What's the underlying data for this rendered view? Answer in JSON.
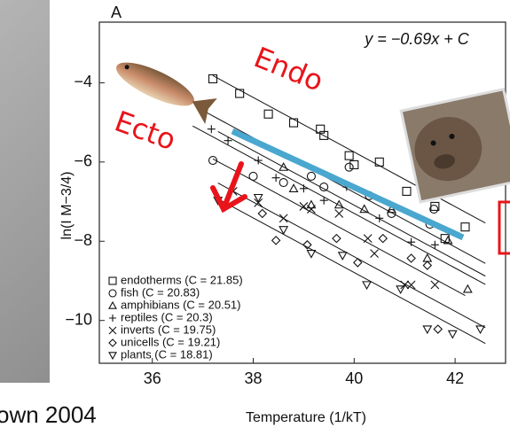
{
  "chart_data": {
    "type": "scatter",
    "panel_label": "A",
    "equation": "y = −0.69x + C",
    "annotations": [
      "Endo",
      "Ecto"
    ],
    "credit": "own 2004",
    "x_label": "Temperature (1/kT)",
    "y_label": "ln(I M−3/4)",
    "xlim": [
      34.95,
      43.0
    ],
    "ylim": [
      -11.08,
      -2.47
    ],
    "xticks": [
      36,
      38,
      40,
      42
    ],
    "yticks": [
      {
        "value": -4,
        "label": "−4"
      },
      {
        "value": -6,
        "label": "−6"
      },
      {
        "value": -8,
        "label": "−8"
      },
      {
        "value": -10,
        "label": "−10"
      }
    ],
    "legend": "lower left",
    "series": [
      {
        "name": "endotherms (C = 21.85)",
        "color": "#111111",
        "marker": "square",
        "x": [
          37.2,
          37.73,
          38.3,
          38.8,
          39.33,
          39.4,
          39.9,
          40.0,
          40.5,
          41.04,
          41.6,
          42.2,
          41.8
        ],
        "values": [
          -3.9,
          -4.27,
          -4.79,
          -5.01,
          -5.17,
          -5.33,
          -5.84,
          -6.07,
          -6.0,
          -6.74,
          -7.12,
          -7.64,
          -7.93
        ]
      },
      {
        "name": "fish (C = 20.83)",
        "color": "#111111",
        "marker": "circle",
        "x": [
          37.2,
          38.0,
          38.6,
          39.15,
          39.4,
          39.9,
          40.3,
          40.74,
          41.58,
          41.5
        ],
        "values": [
          -5.96,
          -6.36,
          -6.52,
          -6.36,
          -6.63,
          -6.13,
          -6.85,
          -7.3,
          -7.19,
          -7.57
        ]
      },
      {
        "name": "amphibians (C = 20.51)",
        "color": "#111111",
        "marker": "triangle-up",
        "x": [
          38.6,
          38.8,
          39.15,
          39.7,
          40.2,
          40.74,
          41.45,
          41.86,
          42.25
        ],
        "values": [
          -6.13,
          -6.67,
          -7.08,
          -7.08,
          -7.19,
          -7.19,
          -8.43,
          -7.98,
          -9.21
        ]
      },
      {
        "name": "reptiles (C = 20.3)",
        "color": "#111111",
        "marker": "plus",
        "x": [
          37.17,
          37.5,
          38.1,
          38.45,
          39.0,
          39.4,
          39.85,
          40.5,
          41.13,
          41.6
        ],
        "values": [
          -5.17,
          -5.46,
          -5.96,
          -6.4,
          -6.67,
          -6.97,
          -6.63,
          -7.42,
          -8.02,
          -8.09
        ]
      },
      {
        "name": "inverts (C = 19.75)",
        "color": "#111111",
        "marker": "x",
        "x": [
          37.6,
          38.1,
          38.6,
          39.0,
          39.15,
          39.7,
          40.27,
          40.4,
          41.0,
          41.13,
          41.6
        ],
        "values": [
          -6.74,
          -7.03,
          -7.42,
          -7.12,
          -7.19,
          -7.3,
          -7.93,
          -8.31,
          -9.1,
          -9.1,
          -9.1
        ]
      },
      {
        "name": "unicells (C = 19.21)",
        "color": "#111111",
        "marker": "diamond",
        "x": [
          38.18,
          38.45,
          39.07,
          39.65,
          40.07,
          40.57,
          41.13,
          41.45,
          41.66
        ],
        "values": [
          -7.3,
          -7.98,
          -8.09,
          -7.93,
          -8.54,
          -7.93,
          -8.43,
          -8.61,
          -10.22
        ]
      },
      {
        "name": "plants (C = 18.81)",
        "color": "#111111",
        "marker": "triangle-down",
        "x": [
          37.3,
          38.1,
          38.6,
          39.15,
          39.77,
          40.25,
          40.92,
          41.45,
          41.95,
          42.5
        ],
        "values": [
          -6.97,
          -6.9,
          -7.71,
          -8.31,
          -8.36,
          -9.1,
          -9.21,
          -10.22,
          -10.34,
          -10.22
        ]
      }
    ],
    "fit_lines": [
      {
        "x": [
          37.2,
          42.6
        ],
        "y": [
          -3.82,
          -7.54
        ]
      },
      {
        "x": [
          37.0,
          42.6
        ],
        "y": [
          -4.7,
          -8.56
        ]
      },
      {
        "x": [
          37.3,
          42.6
        ],
        "y": [
          -5.23,
          -8.88
        ]
      },
      {
        "x": [
          36.8,
          42.6
        ],
        "y": [
          -5.09,
          -9.09
        ]
      },
      {
        "x": [
          37.2,
          42.2
        ],
        "y": [
          -5.92,
          -9.37
        ]
      },
      {
        "x": [
          37.3,
          42.6
        ],
        "y": [
          -6.53,
          -10.18
        ]
      },
      {
        "x": [
          37.3,
          42.6
        ],
        "y": [
          -6.93,
          -10.58
        ]
      }
    ]
  }
}
